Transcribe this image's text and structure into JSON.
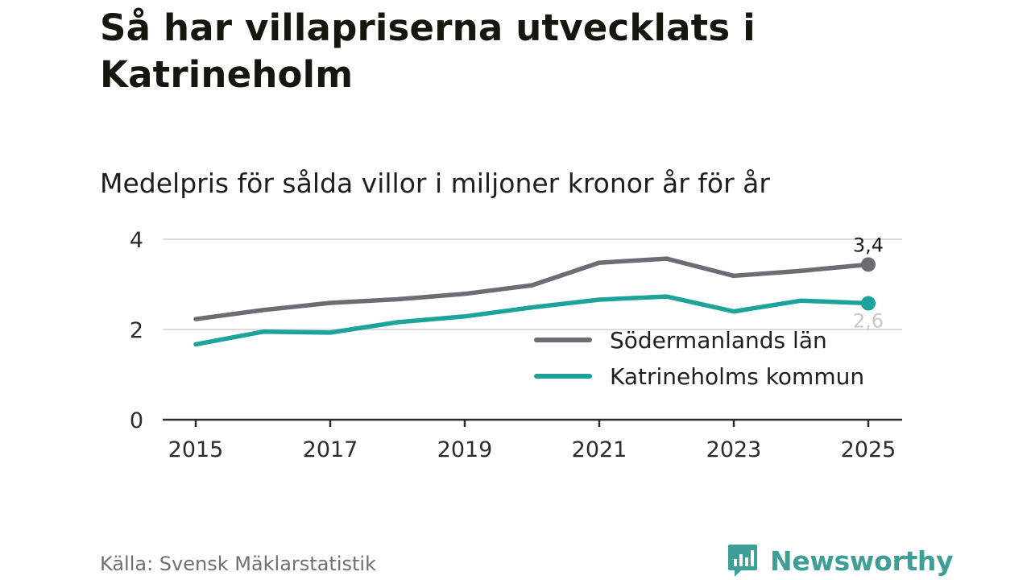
{
  "title": "Så har villapriserna utvecklats i Katrineholm",
  "subtitle": "Medelpris för sålda villor i miljoner kronor år för år",
  "source": "Källa: Svensk Mäklarstatistik",
  "brand": {
    "name": "Newsworthy",
    "icon": "bar-chart-speech-bubble-icon",
    "color": "#3f9e96"
  },
  "chart_data": {
    "type": "line",
    "title": "Medelpris för sålda villor i miljoner kronor år för år",
    "xlabel": "",
    "ylabel": "",
    "x": [
      2015,
      2016,
      2017,
      2018,
      2019,
      2020,
      2021,
      2022,
      2023,
      2024,
      2025
    ],
    "xticks": [
      "2015",
      "2017",
      "2019",
      "2021",
      "2023",
      "2025"
    ],
    "yticks": [
      "0",
      "2",
      "4"
    ],
    "ylim": [
      0,
      4
    ],
    "grid": true,
    "legend_position": "bottom-right",
    "series": [
      {
        "name": "Södermanlands län",
        "color": "#6d6b73",
        "values": [
          2.23,
          2.43,
          2.59,
          2.67,
          2.79,
          2.98,
          3.48,
          3.57,
          3.19,
          3.3,
          3.44
        ],
        "end_label": "3,4"
      },
      {
        "name": "Katrineholms kommun",
        "color": "#1ea39a",
        "values": [
          1.67,
          1.95,
          1.93,
          2.16,
          2.29,
          2.49,
          2.66,
          2.73,
          2.4,
          2.64,
          2.58
        ],
        "end_label": "2,6"
      }
    ]
  }
}
